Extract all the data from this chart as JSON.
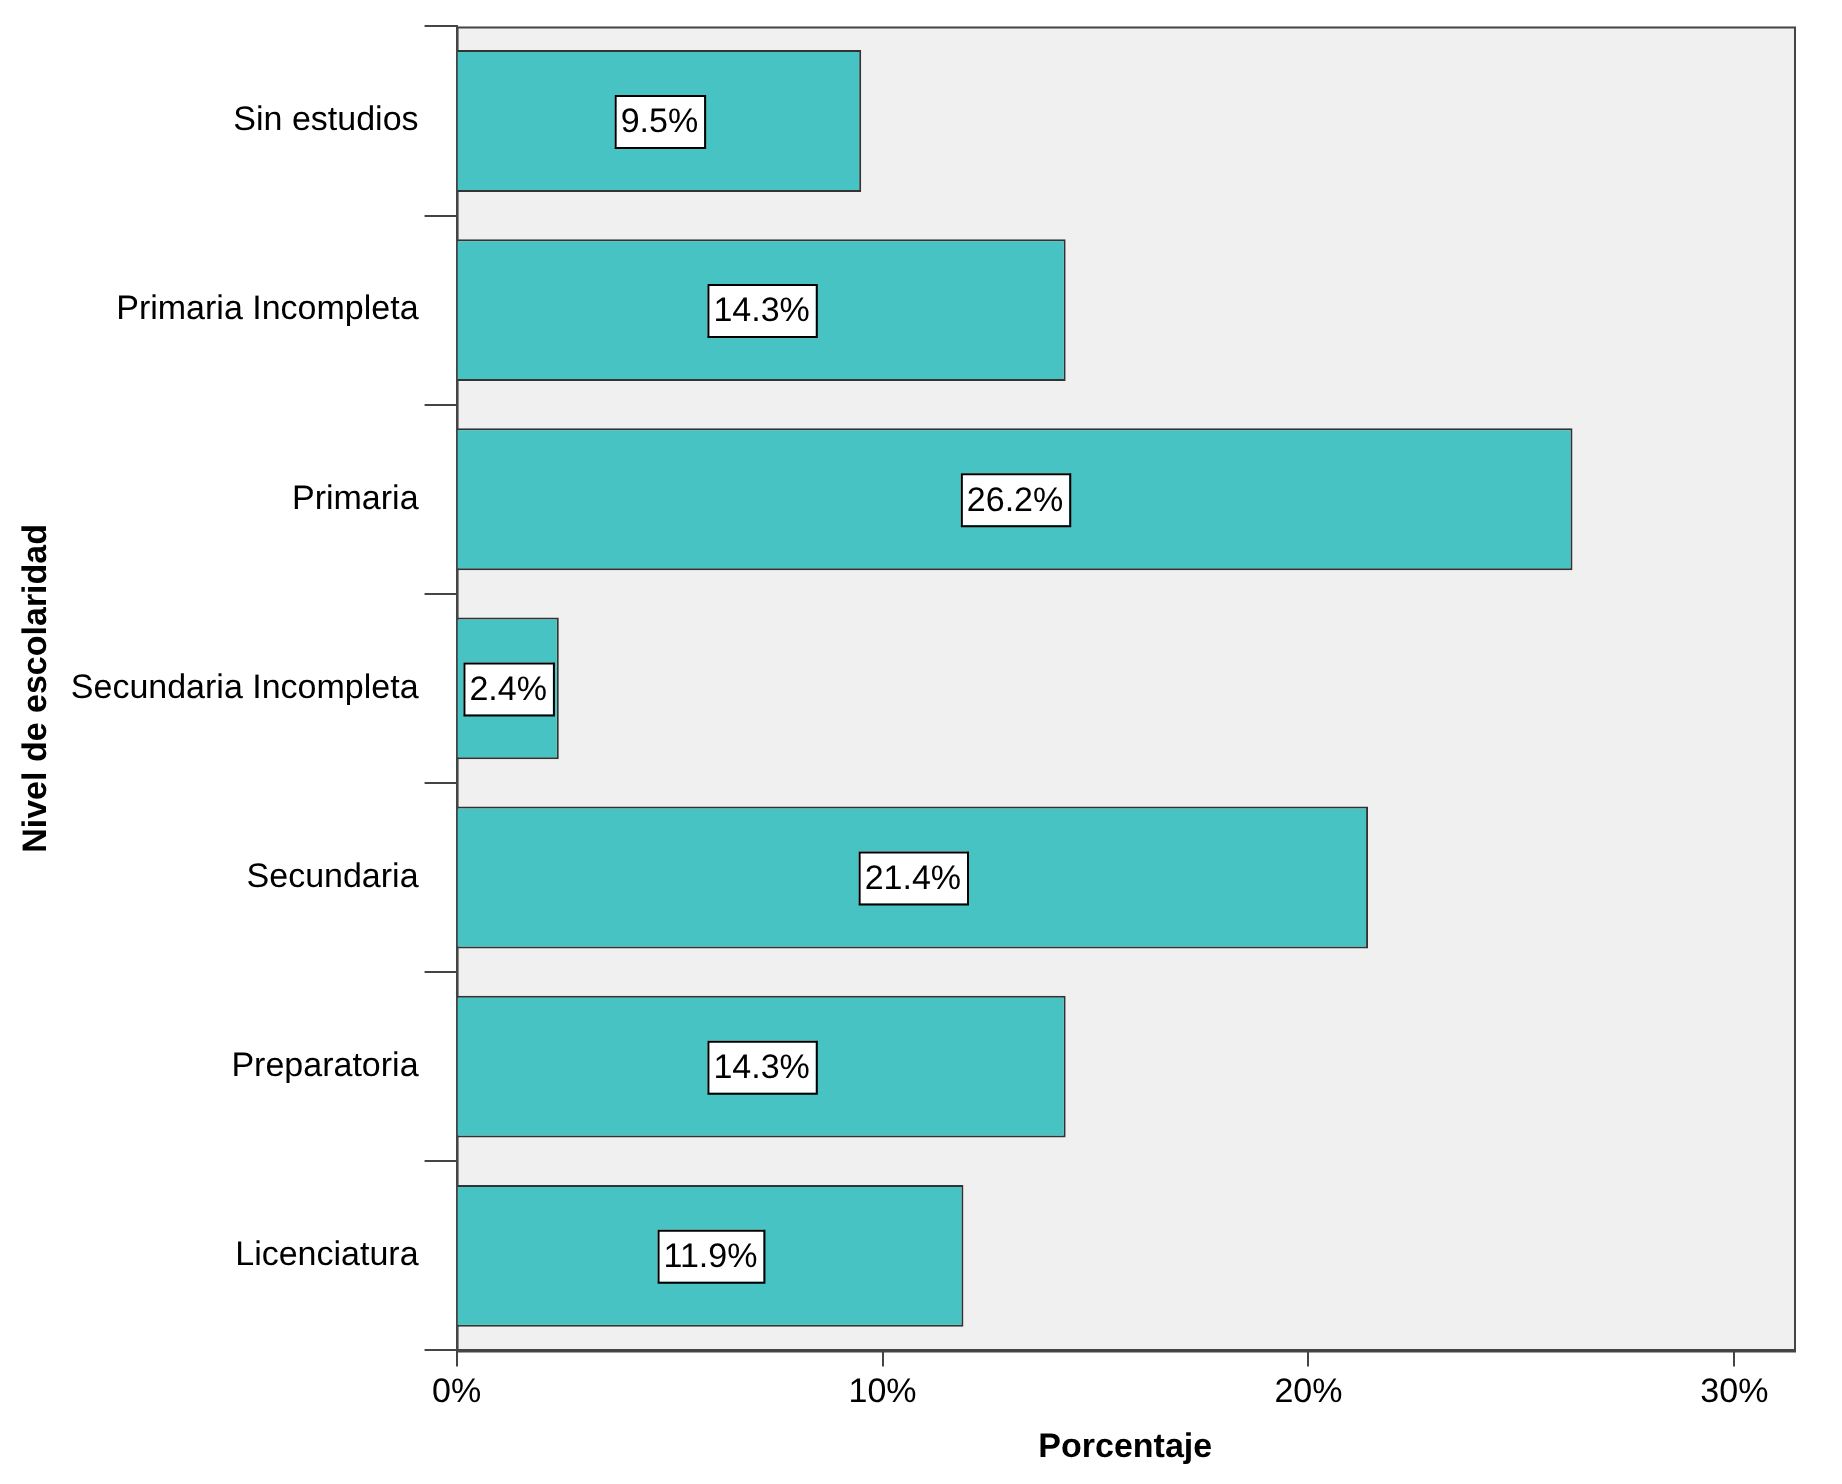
{
  "chart_data": {
    "type": "bar",
    "orientation": "horizontal",
    "xlabel": "Porcentaje",
    "ylabel": "Nivel de escolaridad",
    "categories": [
      "Sin estudios",
      "Primaria Incompleta",
      "Primaria",
      "Secundaria Incompleta",
      "Secundaria",
      "Preparatoria",
      "Licenciatura"
    ],
    "values": [
      9.5,
      14.3,
      26.2,
      2.4,
      21.4,
      14.3,
      11.9
    ],
    "value_labels": [
      "9.5%",
      "14.3%",
      "26.2%",
      "2.4%",
      "21.4%",
      "14.3%",
      "11.9%"
    ],
    "color": "#48c3c3",
    "xlim": [
      0,
      31.4
    ],
    "xticks": [
      {
        "value": 0,
        "label": "0%"
      },
      {
        "value": 10,
        "label": "10%"
      },
      {
        "value": 20,
        "label": "20%"
      },
      {
        "value": 30,
        "label": "30%"
      }
    ],
    "grid": false,
    "legend": false
  }
}
